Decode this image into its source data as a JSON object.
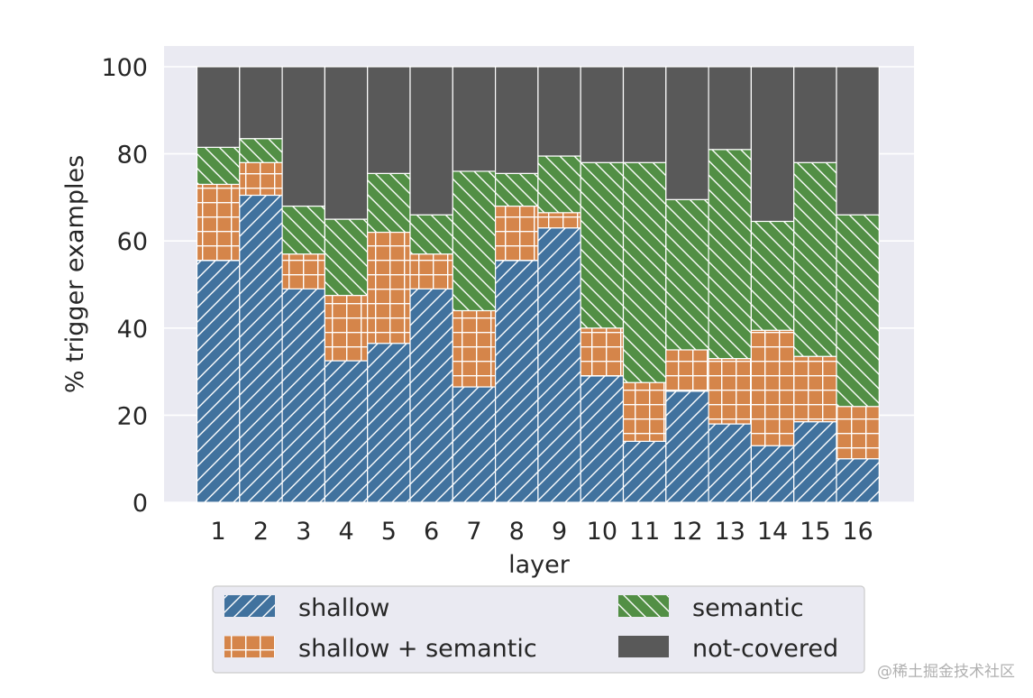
{
  "chart_data": {
    "type": "bar",
    "stacked": true,
    "xlabel": "layer",
    "ylabel": "% trigger examples",
    "ylim": [
      0,
      100
    ],
    "yticks": [
      0,
      20,
      40,
      60,
      80,
      100
    ],
    "categories": [
      "1",
      "2",
      "3",
      "4",
      "5",
      "6",
      "7",
      "8",
      "9",
      "10",
      "11",
      "12",
      "13",
      "14",
      "15",
      "16"
    ],
    "series": [
      {
        "name": "shallow",
        "key": "shallow",
        "color": "#41729e",
        "pattern": "hatch-forward",
        "values": [
          55.5,
          70.5,
          49,
          32.5,
          36.5,
          49,
          26.5,
          55.5,
          63,
          29,
          14,
          25.5,
          18,
          13,
          18.5,
          10
        ]
      },
      {
        "name": "shallow + semantic",
        "key": "both",
        "color": "#d5854a",
        "pattern": "grid",
        "values": [
          17.5,
          7.5,
          8,
          15,
          25.5,
          8,
          17.5,
          12.5,
          3.5,
          11,
          13.5,
          9.5,
          15,
          26.5,
          15,
          12
        ]
      },
      {
        "name": "semantic",
        "key": "semantic",
        "color": "#528f45",
        "pattern": "hatch-back",
        "values": [
          8.5,
          5.5,
          11,
          17.5,
          13.5,
          9,
          32,
          7.5,
          13,
          38,
          50.5,
          34.5,
          48,
          25,
          44.5,
          44
        ]
      },
      {
        "name": "not-covered",
        "key": "notcovered",
        "color": "#595959",
        "pattern": "solid",
        "values": [
          18.5,
          16.5,
          32,
          35,
          24.5,
          34,
          24,
          24.5,
          20.5,
          22,
          22,
          30.5,
          19,
          35.5,
          22,
          34
        ]
      }
    ],
    "legend": {
      "position": "below",
      "columns": [
        [
          "shallow",
          "shallow + semantic"
        ],
        [
          "semantic",
          "not-covered"
        ]
      ]
    },
    "background": "#eaeaf2",
    "grid": true
  },
  "watermark": "@稀土掘金技术社区"
}
